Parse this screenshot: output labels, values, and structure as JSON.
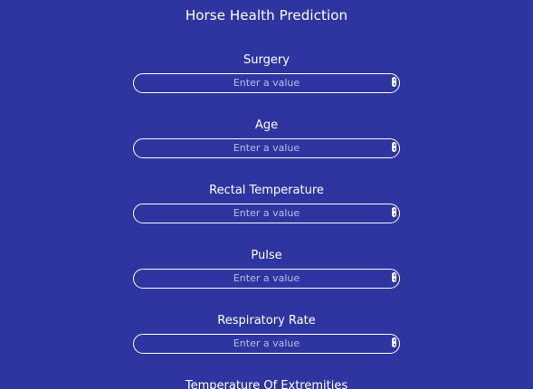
{
  "app": {
    "title": "Horse Health Prediction"
  },
  "form": {
    "fields": [
      {
        "label": "Surgery",
        "placeholder": "Enter a value"
      },
      {
        "label": "Age",
        "placeholder": "Enter a value"
      },
      {
        "label": "Rectal Temperature",
        "placeholder": "Enter a value"
      },
      {
        "label": "Pulse",
        "placeholder": "Enter a value"
      },
      {
        "label": "Respiratory Rate",
        "placeholder": "Enter a value"
      },
      {
        "label": "Temperature Of Extremities"
      }
    ]
  },
  "icons": {
    "spinner": "number-spinner-icon"
  },
  "colors": {
    "background": "#2f35a0",
    "text": "#ffffff",
    "placeholder": "#b9bce6",
    "border": "#ffffff"
  }
}
